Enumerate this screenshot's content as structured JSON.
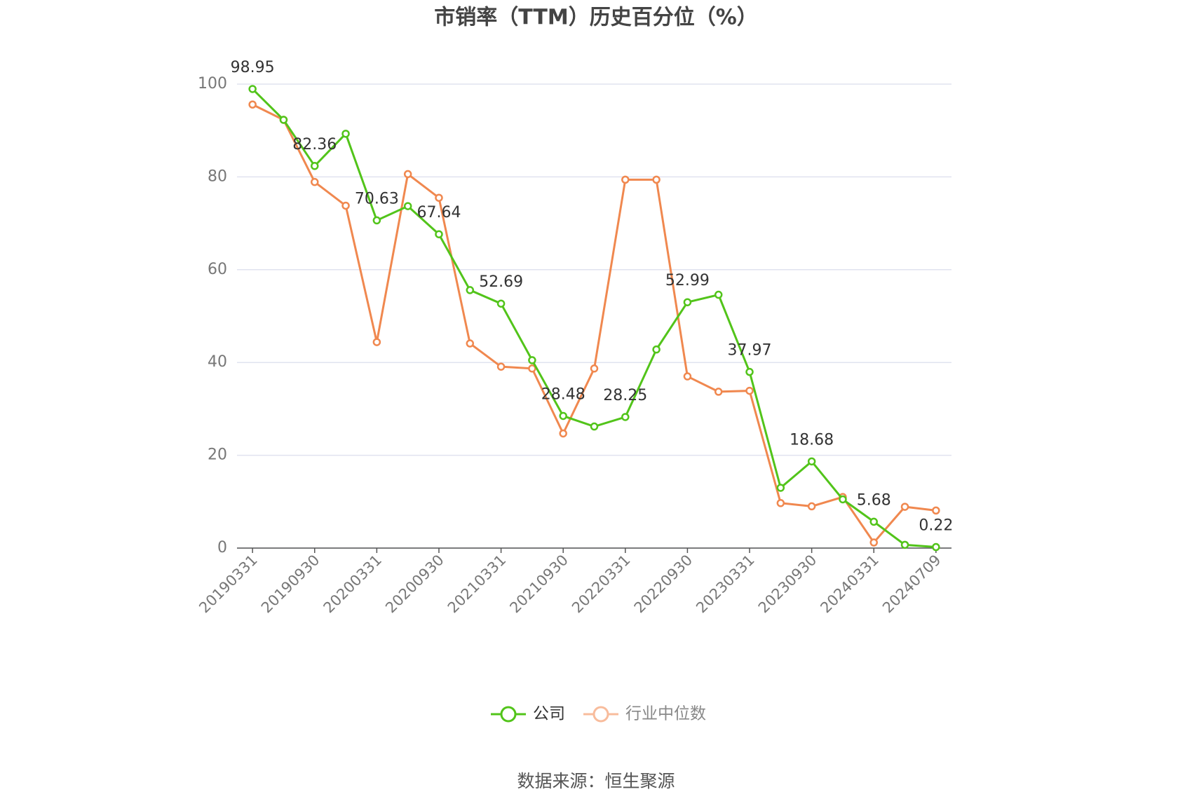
{
  "chart_data": {
    "type": "line",
    "title": "市销率（TTM）历史百分位（%）",
    "source": "数据来源：恒生聚源",
    "categories": [
      "20190331",
      null,
      "20190930",
      null,
      "20200331",
      null,
      "20200930",
      null,
      "20210331",
      null,
      "20210930",
      null,
      "20220331",
      null,
      "20220930",
      null,
      "20230331",
      null,
      "20230930",
      null,
      "20240331",
      null,
      "20240709"
    ],
    "series": [
      {
        "name": "公司",
        "color": "#52c41a",
        "values": [
          98.95,
          92.3,
          82.36,
          89.3,
          70.63,
          73.7,
          67.64,
          55.6,
          52.69,
          40.5,
          28.48,
          26.2,
          28.25,
          42.8,
          52.99,
          54.6,
          37.97,
          13.0,
          18.68,
          10.5,
          5.68,
          0.7,
          0.22
        ],
        "value_labels": [
          "98.95",
          null,
          "82.36",
          null,
          "70.63",
          null,
          "67.64",
          null,
          "52.69",
          null,
          "28.48",
          null,
          "28.25",
          null,
          "52.99",
          null,
          "37.97",
          null,
          "18.68",
          null,
          "5.68",
          null,
          "0.22"
        ]
      },
      {
        "name": "行业中位数",
        "color": "#f0884f",
        "values": [
          95.6,
          92.3,
          78.9,
          73.8,
          44.4,
          80.6,
          75.5,
          44.1,
          39.1,
          38.7,
          24.7,
          38.7,
          79.4,
          79.4,
          37.0,
          33.7,
          33.9,
          9.7,
          9.0,
          11.0,
          1.2,
          8.9,
          8.1
        ]
      }
    ],
    "ylim": [
      0,
      100
    ],
    "yticks": [
      0,
      20,
      40,
      60,
      80,
      100
    ],
    "grid": true,
    "legend": "bottom"
  }
}
